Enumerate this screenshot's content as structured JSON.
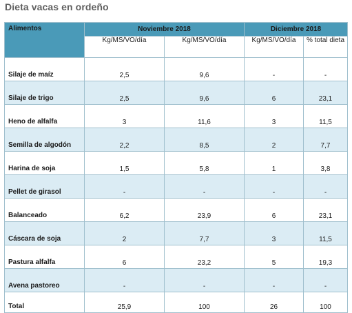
{
  "title": "Dieta vacas en ordeño",
  "table": {
    "col_header": "Alimentos",
    "group_headers": [
      "Noviembre 2018",
      "Diciembre 2018"
    ],
    "sub_headers": [
      "Kg/MS/VO/día",
      "Kg/MS/VO/día",
      "Kg/MS/VO/día",
      "% total dieta"
    ],
    "rows": [
      {
        "name": "Silaje de maíz",
        "values": [
          "2,5",
          "9,6",
          "-",
          "-"
        ]
      },
      {
        "name": "Silaje de trigo",
        "values": [
          "2,5",
          "9,6",
          "6",
          "23,1"
        ]
      },
      {
        "name": "Heno de alfalfa",
        "values": [
          "3",
          "11,6",
          "3",
          "11,5"
        ]
      },
      {
        "name": "Semilla de algodón",
        "values": [
          "2,2",
          "8,5",
          "2",
          "7,7"
        ]
      },
      {
        "name": "Harina de soja",
        "values": [
          "1,5",
          "5,8",
          "1",
          "3,8"
        ]
      },
      {
        "name": "Pellet de girasol",
        "values": [
          "-",
          "-",
          "-",
          "-"
        ]
      },
      {
        "name": "Balanceado",
        "values": [
          "6,2",
          "23,9",
          "6",
          "23,1"
        ]
      },
      {
        "name": "Cáscara de soja",
        "values": [
          "2",
          "7,7",
          "3",
          "11,5"
        ]
      },
      {
        "name": "Pastura alfalfa",
        "values": [
          "6",
          "23,2",
          "5",
          "19,3"
        ]
      },
      {
        "name": "Avena pastoreo",
        "values": [
          "-",
          "-",
          "-",
          "-"
        ]
      },
      {
        "name": "Total",
        "values": [
          "25,9",
          "100",
          "26",
          "100"
        ]
      }
    ]
  },
  "colors": {
    "header_blue": "#4a9ab8",
    "stripe": "#dbecf4",
    "title_grey": "#5f5f5f"
  }
}
